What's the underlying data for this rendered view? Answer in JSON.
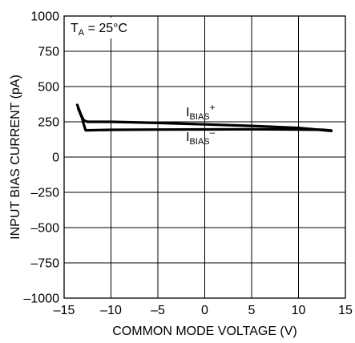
{
  "chart_data": {
    "type": "line",
    "annotation": {
      "prefix": "T",
      "subscript": "A",
      "suffix": " = 25°C"
    },
    "xlabel": "COMMON MODE VOLTAGE (V)",
    "ylabel": "INPUT BIAS CURRENT (pA)",
    "xlim": [
      -15,
      15
    ],
    "ylim": [
      -1000,
      1000
    ],
    "xticks": [
      -15,
      -10,
      -5,
      0,
      5,
      10,
      15
    ],
    "xtick_labels": [
      "–15",
      "–10",
      "–5",
      "0",
      "5",
      "10",
      "15"
    ],
    "yticks": [
      -1000,
      -750,
      -500,
      -250,
      0,
      250,
      500,
      750,
      1000
    ],
    "ytick_labels": [
      "–1000",
      "–750",
      "–500",
      "–250",
      "0",
      "250",
      "500",
      "750",
      "1000"
    ],
    "grid": true,
    "series": [
      {
        "label_main": "I",
        "label_sub": "BIAS",
        "label_sup": "+",
        "label_anchor": [
          -2.0,
          290
        ],
        "x": [
          -13.6,
          -13.2,
          -12.9,
          -12.5,
          -11.0,
          -10.0,
          -5.0,
          0.0,
          5.0,
          10.0,
          13.5
        ],
        "y": [
          370,
          300,
          260,
          250,
          250,
          250,
          242,
          232,
          221,
          207,
          185
        ]
      },
      {
        "label_main": "I",
        "label_sub": "BIAS",
        "label_sup": "–",
        "label_anchor": [
          -2.0,
          115
        ],
        "x": [
          -13.5,
          -13.1,
          -12.9,
          -12.7,
          -10.0,
          -5.0,
          0.0,
          5.0,
          10.0,
          12.5,
          13.5
        ],
        "y": [
          345,
          280,
          230,
          190,
          193,
          195,
          196,
          197,
          195,
          194,
          188
        ]
      }
    ]
  }
}
